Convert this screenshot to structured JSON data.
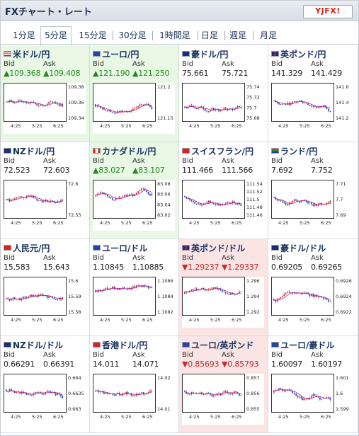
{
  "header": {
    "title": "FXチャート・レート",
    "logo": "YJFX!"
  },
  "tabs": [
    "1分足",
    "5分足",
    "15分足",
    "30分足",
    "1時間足",
    "日足",
    "週足",
    "月足"
  ],
  "active_tab": 1,
  "labels": {
    "bid": "Bid",
    "ask": "Ask"
  },
  "x_ticks": [
    "4:25",
    "5:25",
    "6:25"
  ],
  "pairs": [
    {
      "name": "米ドル/円",
      "flag": "us",
      "bid": "109.368",
      "ask": "109.408",
      "trend": "up",
      "yticks": [
        "109.38",
        "109.36",
        "109.34"
      ]
    },
    {
      "name": "ユーロ/円",
      "flag": "eu",
      "bid": "121.190",
      "ask": "121.250",
      "trend": "up",
      "yticks": [
        "121.2",
        "121.15"
      ]
    },
    {
      "name": "豪ドル/円",
      "flag": "au",
      "bid": "75.661",
      "ask": "75.721",
      "trend": "none",
      "yticks": [
        "75.74",
        "75.72",
        "75.7",
        "75.68"
      ]
    },
    {
      "name": "英ポンド/円",
      "flag": "gb",
      "bid": "141.329",
      "ask": "141.429",
      "trend": "none",
      "yticks": [
        "141.6",
        "141.4",
        "141.2"
      ]
    },
    {
      "name": "NZドル/円",
      "flag": "nz",
      "bid": "72.523",
      "ask": "72.603",
      "trend": "none",
      "yticks": [
        "72.6",
        "72.55"
      ]
    },
    {
      "name": "カナダドル/円",
      "flag": "ca",
      "bid": "83.027",
      "ask": "83.107",
      "trend": "up",
      "yticks": [
        "83.08",
        "83.06",
        "83.04",
        "83.02"
      ]
    },
    {
      "name": "スイスフラン/円",
      "flag": "ch",
      "bid": "111.466",
      "ask": "111.566",
      "trend": "none",
      "yticks": [
        "111.54",
        "111.52",
        "111.5",
        "111.48",
        "111.46"
      ]
    },
    {
      "name": "ランド/円",
      "flag": "za",
      "bid": "7.692",
      "ask": "7.752",
      "trend": "none",
      "yticks": [
        "7.71",
        "7.7",
        "7.69"
      ]
    },
    {
      "name": "人民元/円",
      "flag": "cn",
      "bid": "15.583",
      "ask": "15.643",
      "trend": "none",
      "yticks": [
        "15.6",
        "15.59",
        "15.58"
      ]
    },
    {
      "name": "ユーロ/ドル",
      "flag": "eu",
      "bid": "1.10845",
      "ask": "1.10885",
      "trend": "none",
      "yticks": [
        "1.1086",
        "1.1084",
        "1.1082"
      ]
    },
    {
      "name": "英ポンド/ドル",
      "flag": "gb",
      "bid": "1.29237",
      "ask": "1.29337",
      "trend": "down",
      "yticks": [
        "1.296",
        "1.294",
        "1.292"
      ]
    },
    {
      "name": "豪ドル/ドル",
      "flag": "au",
      "bid": "0.69205",
      "ask": "0.69265",
      "trend": "none",
      "yticks": [
        "0.6926",
        "0.6924",
        "0.6922"
      ]
    },
    {
      "name": "NZドル/ドル",
      "flag": "nz",
      "bid": "0.66291",
      "ask": "0.66391",
      "trend": "none",
      "yticks": [
        "0.664",
        "0.6635",
        "0.663"
      ]
    },
    {
      "name": "香港ドル/円",
      "flag": "hk",
      "bid": "14.011",
      "ask": "14.071",
      "trend": "none",
      "yticks": [
        "14.02",
        "14.01"
      ]
    },
    {
      "name": "ユーロ/英ポンド",
      "flag": "eu",
      "bid": "0.85693",
      "ask": "0.85793",
      "trend": "down",
      "yticks": [
        "0.857",
        "0.856",
        "0.855"
      ]
    },
    {
      "name": "ユーロ/豪ドル",
      "flag": "eu",
      "bid": "1.60097",
      "ask": "1.60197",
      "trend": "none",
      "yticks": [
        "1.601",
        "1.6",
        "1.599"
      ]
    }
  ],
  "colors": {
    "candle_up": "#cc2222",
    "candle_down": "#1c3d99",
    "ma": "#b0229c",
    "ma2": "#1fa3c4",
    "up": "#1f8a1f",
    "down": "#c92a2a"
  }
}
